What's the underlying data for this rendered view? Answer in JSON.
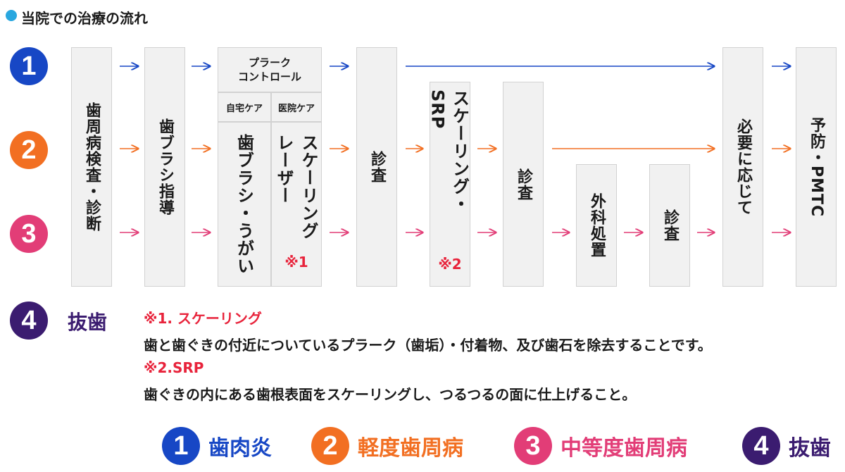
{
  "title": "当院での治療の流れ",
  "colors": {
    "blue": "#1747c5",
    "orange": "#f26f22",
    "pink": "#e23d77",
    "purple": "#3b1c70",
    "red": "#e8233b",
    "accent": "#29a7df"
  },
  "badges": [
    "1",
    "2",
    "3",
    "4"
  ],
  "steps": {
    "exam1": "歯周病検査・診断",
    "brush_guide": "歯ブラシ指導",
    "plaque_control": "プラーク\nコントロール",
    "home_care": "自宅ケア",
    "clinic_care": "医院ケア",
    "brush_gargle": "歯ブラシ・うがい",
    "scaling_laser": "スケーリング\nレーザー",
    "note1_mark": "※1",
    "exam2": "診査",
    "scaling_srp": "スケーリング・SRP",
    "note2_mark": "※2",
    "exam3": "診査",
    "surgery": "外科処置",
    "exam4": "診査",
    "as_needed": "必要に応じて",
    "prevention": "予防・PMTC"
  },
  "extraction": "抜歯",
  "notes": [
    {
      "heading": "※1. スケーリング",
      "body": "歯と歯ぐきの付近についているプラーク（歯垢）・付着物、及び歯石を除去することです。"
    },
    {
      "heading": "※2.SRP",
      "body": "歯ぐきの内にある歯根表面をスケーリングし、つるつるの面に仕上げること。"
    }
  ],
  "legend": [
    {
      "num": "1",
      "label": "歯肉炎"
    },
    {
      "num": "2",
      "label": "軽度歯周病"
    },
    {
      "num": "3",
      "label": "中等度歯周病"
    },
    {
      "num": "4",
      "label": "抜歯"
    }
  ]
}
